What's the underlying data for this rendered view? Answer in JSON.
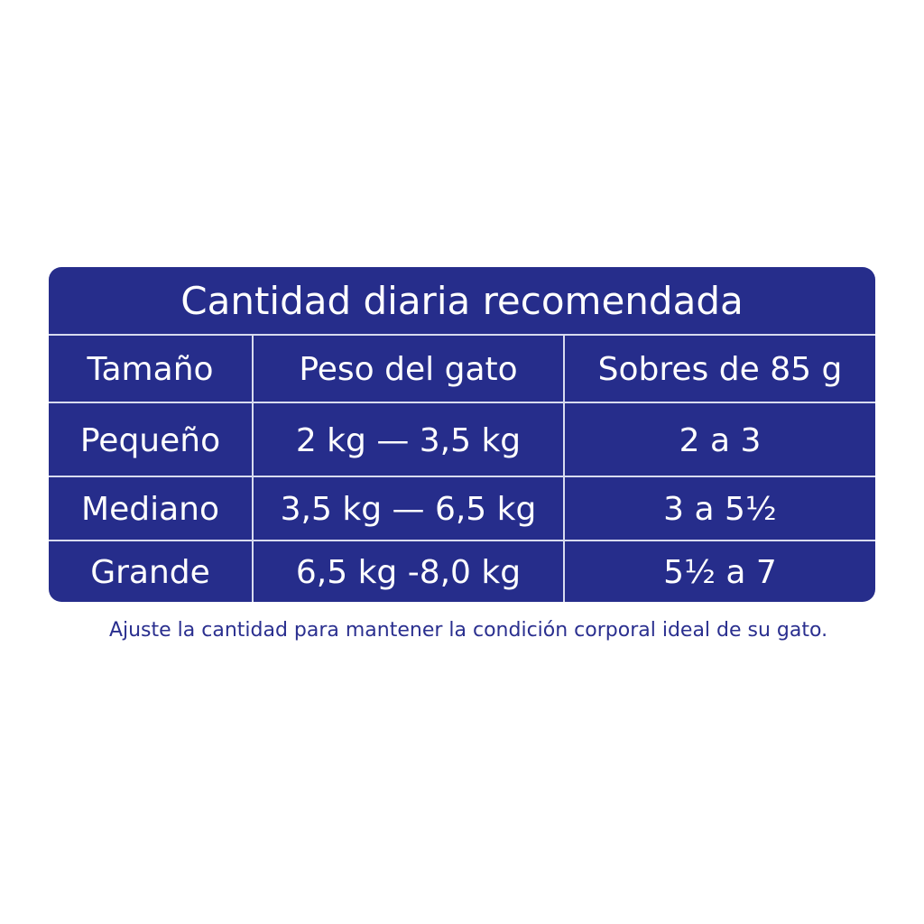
{
  "title": "Cantidad diaria recomendada",
  "headers": [
    "Tamaño",
    "Peso del gato",
    "Sobres de 85 g"
  ],
  "rows": [
    [
      "Pequeño",
      "2 kg — 3,5 kg",
      "2 a 3"
    ],
    [
      "Mediano",
      "3,5 kg — 6,5 kg",
      "3 a 5½"
    ],
    [
      "Grande",
      "6,5 kg -8,0 kg",
      "5½ a 7"
    ]
  ],
  "footnote": "Ajuste la cantidad para mantener la condición corporal ideal de su gato.",
  "colors": {
    "table_bg": "#262d8b",
    "text": "#ffffff",
    "footnote": "#2a2f8f"
  }
}
